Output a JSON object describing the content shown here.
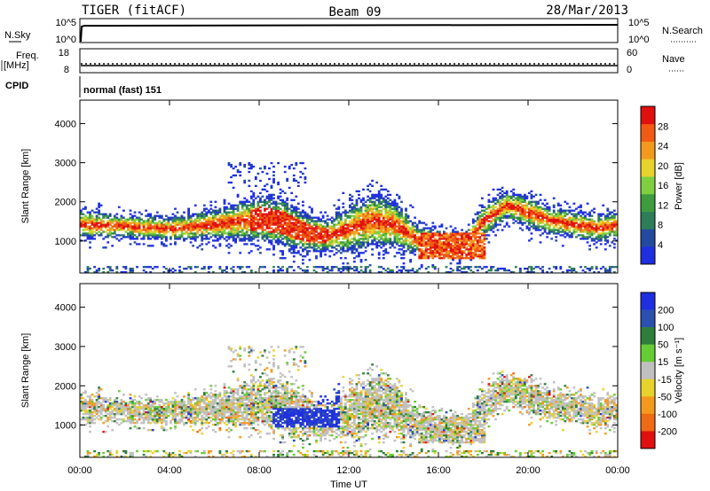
{
  "header": {
    "radar": "TIGER (fitACF)",
    "beam": "Beam 09",
    "date": "28/Mar/2013"
  },
  "status": {
    "nsky_label": "N.Sky",
    "nsky_ticks": [
      "10^5",
      "10^0"
    ],
    "nsearch_label": "N.Search",
    "nsearch_ticks": [
      "10^5",
      "10^0"
    ],
    "freq_label_line1": "Freq.",
    "freq_label_line2": "[MHz]",
    "freq_ticks": [
      "18",
      "8"
    ],
    "nave_label": "Nave",
    "nave_ticks": [
      "60",
      "0"
    ],
    "cpid_label": "CPID",
    "cpid_text": "normal (fast) 151"
  },
  "colors": {
    "power": [
      "#1f2fe0",
      "#244aa0",
      "#2e7d5a",
      "#3e9b3e",
      "#7fcf3f",
      "#e8d22c",
      "#f39a1e",
      "#f05a12",
      "#e01010"
    ],
    "velocity": [
      "#1f2fe0",
      "#2c4fb0",
      "#2e7d3a",
      "#66cc33",
      "#c0c0c0",
      "#e8d22c",
      "#f39a1e",
      "#ef6a14",
      "#e01010"
    ]
  },
  "chart_data": [
    {
      "type": "heatmap",
      "panel": "power",
      "ylabel": "Slant Range [km]",
      "yticks": [
        1000,
        2000,
        3000,
        4000
      ],
      "ylim": [
        180,
        4600
      ],
      "xlim": [
        "00:00",
        "24:00"
      ],
      "colorbar_label": "Power [dB]",
      "colorbar_ticks": [
        4,
        8,
        12,
        16,
        20,
        24,
        28
      ],
      "bands": [
        {
          "t": [
            0,
            2,
            4,
            6,
            8,
            9,
            10,
            11,
            12,
            13,
            14,
            15,
            16,
            17,
            18,
            19,
            20,
            21,
            22,
            23,
            24
          ],
          "center": [
            1400,
            1350,
            1300,
            1400,
            1550,
            1450,
            1200,
            1100,
            1300,
            1500,
            1400,
            1000,
            900,
            800,
            1500,
            1900,
            1700,
            1500,
            1400,
            1300,
            1400
          ],
          "width": [
            350,
            300,
            300,
            380,
            600,
            600,
            500,
            400,
            600,
            700,
            600,
            400,
            350,
            300,
            400,
            350,
            400,
            350,
            350,
            350,
            350
          ]
        }
      ]
    },
    {
      "type": "heatmap",
      "panel": "velocity",
      "ylabel": "Slant Range [km]",
      "yticks": [
        1000,
        2000,
        3000,
        4000
      ],
      "ylim": [
        180,
        4600
      ],
      "xlim": [
        "00:00",
        "24:00"
      ],
      "xticks": [
        "00:00",
        "04:00",
        "08:00",
        "12:00",
        "16:00",
        "20:00",
        "00:00"
      ],
      "xlabel": "Time UT",
      "colorbar_label": "Velocity [m s⁻¹]",
      "colorbar_ticks": [
        "200",
        "100",
        "50",
        "15",
        "-15",
        "-50",
        "-100",
        "-200"
      ]
    }
  ]
}
